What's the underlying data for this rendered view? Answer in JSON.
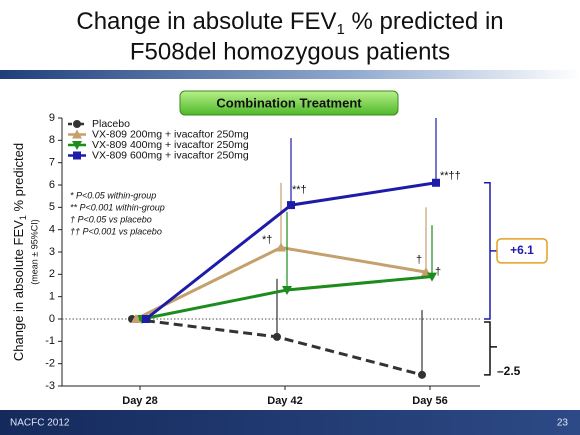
{
  "slide": {
    "title_line1_a": "Change in absolute FEV",
    "title_line1_sub": "1",
    "title_line1_b": " % predicted in",
    "title_line2": "F508del homozygous patients",
    "badge": "Combination Treatment",
    "footer_left": "NACFC 2012",
    "page_number": "23"
  },
  "chart_data": {
    "type": "line",
    "y_label_a": "Change in absolute FEV",
    "y_label_sub": "1",
    "y_label_b": " % predicted",
    "y_label_note": "(mean ± 95%CI)",
    "categories": [
      "Day 28",
      "Day 42",
      "Day 56"
    ],
    "ylim": [
      -3,
      9
    ],
    "yticks": [
      -3,
      -2,
      -1,
      0,
      1,
      2,
      3,
      4,
      5,
      6,
      7,
      8,
      9
    ],
    "reference_line": 0,
    "series": [
      {
        "name": "Placebo",
        "color": "#333333",
        "marker": "circle",
        "dashed": true,
        "values": [
          0,
          -0.8,
          -2.5
        ],
        "ci_upper": [
          null,
          1.8,
          0.4
        ]
      },
      {
        "name": "VX-809 200mg + ivacaftor 250mg",
        "color": "#c4a06c",
        "marker": "triangle-up",
        "dashed": false,
        "values": [
          0,
          3.2,
          2.1
        ],
        "ci_upper": [
          null,
          6.1,
          5.0
        ]
      },
      {
        "name": "VX-809 400mg + ivacaftor 250mg",
        "color": "#1c8c1c",
        "marker": "triangle-down",
        "dashed": false,
        "values": [
          0,
          1.3,
          1.9
        ],
        "ci_upper": [
          null,
          4.8,
          4.2
        ]
      },
      {
        "name": "VX-809 600mg + ivacaftor 250mg",
        "color": "#1c1ca8",
        "marker": "square",
        "dashed": false,
        "values": [
          0,
          5.1,
          6.1
        ],
        "ci_upper": [
          null,
          8.1,
          9.0
        ]
      }
    ],
    "annotations": [
      "*†",
      "**†",
      "†",
      "†",
      "**††"
    ],
    "footnotes": [
      "* P<0.05 within-group",
      "** P<0.001 within-group",
      "† P<0.05 vs placebo",
      "†† P<0.001 vs placebo"
    ],
    "bracket_labels": [
      "+6.1",
      "–2.5"
    ]
  }
}
